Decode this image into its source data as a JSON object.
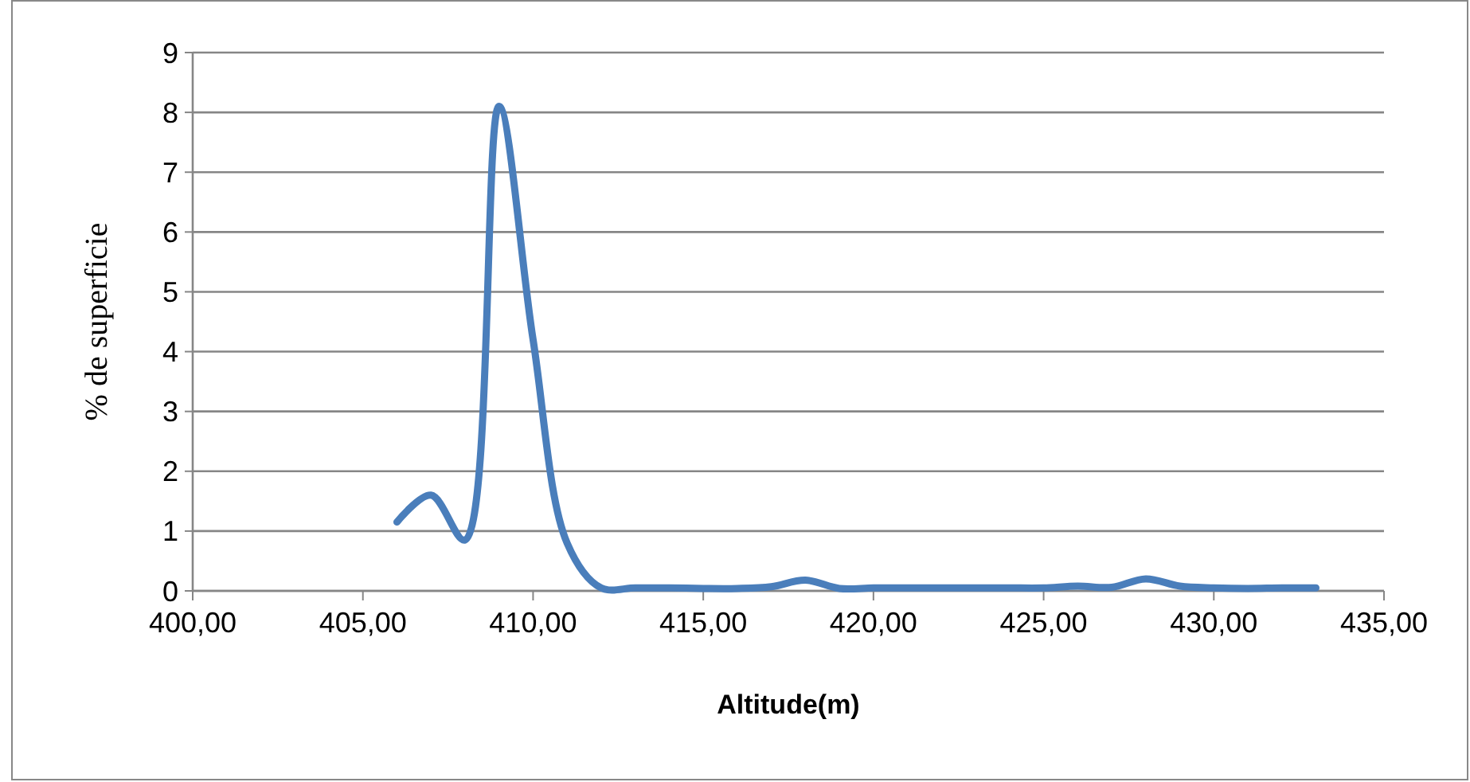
{
  "chart_data": {
    "type": "line",
    "xlabel": "Altitude(m)",
    "ylabel": "% de superficie",
    "x": [
      406,
      407,
      408,
      409,
      410,
      411,
      412,
      413,
      414,
      415,
      416,
      417,
      418,
      419,
      420,
      421,
      422,
      423,
      424,
      425,
      426,
      427,
      428,
      429,
      430,
      431,
      432,
      433
    ],
    "series": [
      {
        "color": "#4a7ebb",
        "values": [
          1.15,
          1.6,
          0.85,
          8.1,
          4.2,
          0.8,
          0.05,
          0.05,
          0.05,
          0.04,
          0.04,
          0.07,
          0.18,
          0.04,
          0.05,
          0.05,
          0.05,
          0.05,
          0.05,
          0.05,
          0.08,
          0.06,
          0.2,
          0.08,
          0.05,
          0.04,
          0.05,
          0.05
        ]
      }
    ],
    "xlim": [
      400,
      435
    ],
    "xticks": [
      {
        "value": 400,
        "label": "400,00"
      },
      {
        "value": 405,
        "label": "405,00"
      },
      {
        "value": 410,
        "label": "410,00"
      },
      {
        "value": 415,
        "label": "415,00"
      },
      {
        "value": 420,
        "label": "420,00"
      },
      {
        "value": 425,
        "label": "425,00"
      },
      {
        "value": 430,
        "label": "430,00"
      },
      {
        "value": 435,
        "label": "435,00"
      }
    ],
    "ylim": [
      0,
      9
    ],
    "yticks": [
      0,
      1,
      2,
      3,
      4,
      5,
      6,
      7,
      8,
      9
    ],
    "grid": "y",
    "marker": "none",
    "line_style": "solid"
  }
}
